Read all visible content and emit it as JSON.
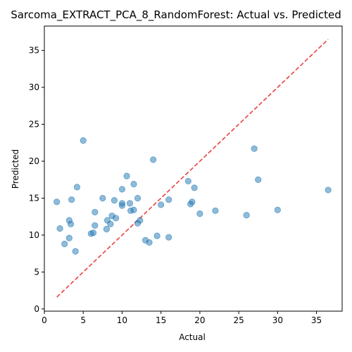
{
  "chart_data": {
    "type": "scatter",
    "title": "Sarcoma_EXTRACT_PCA_8_RandomForest: Actual vs. Predicted",
    "xlabel": "Actual",
    "ylabel": "Predicted",
    "xlim": [
      0,
      38.3
    ],
    "ylim": [
      -0.3,
      38.3
    ],
    "xticks": [
      0,
      5,
      10,
      15,
      20,
      25,
      30,
      35
    ],
    "yticks": [
      0,
      5,
      10,
      15,
      20,
      25,
      30,
      35
    ],
    "grid": false,
    "point_color": "#1f77b4",
    "point_alpha": 0.5,
    "reference_line": {
      "style": "dashed",
      "color": "#e8413e",
      "x": [
        1.6,
        36.5
      ],
      "y": [
        1.6,
        36.5
      ]
    },
    "points": [
      {
        "x": 1.6,
        "y": 14.5
      },
      {
        "x": 2.0,
        "y": 10.9
      },
      {
        "x": 2.6,
        "y": 8.8
      },
      {
        "x": 3.2,
        "y": 9.6
      },
      {
        "x": 3.2,
        "y": 12.0
      },
      {
        "x": 3.4,
        "y": 11.5
      },
      {
        "x": 3.5,
        "y": 14.8
      },
      {
        "x": 4.0,
        "y": 7.8
      },
      {
        "x": 4.2,
        "y": 16.5
      },
      {
        "x": 5.0,
        "y": 22.8
      },
      {
        "x": 6.0,
        "y": 10.2
      },
      {
        "x": 6.3,
        "y": 10.3
      },
      {
        "x": 6.5,
        "y": 11.3
      },
      {
        "x": 6.5,
        "y": 13.1
      },
      {
        "x": 7.5,
        "y": 15.0
      },
      {
        "x": 8.0,
        "y": 10.8
      },
      {
        "x": 8.1,
        "y": 12.0
      },
      {
        "x": 8.5,
        "y": 11.5
      },
      {
        "x": 8.7,
        "y": 12.6
      },
      {
        "x": 9.0,
        "y": 14.7
      },
      {
        "x": 9.2,
        "y": 12.3
      },
      {
        "x": 10.0,
        "y": 14.3
      },
      {
        "x": 10.0,
        "y": 14.0
      },
      {
        "x": 10.0,
        "y": 16.2
      },
      {
        "x": 10.6,
        "y": 18.0
      },
      {
        "x": 11.0,
        "y": 14.3
      },
      {
        "x": 11.1,
        "y": 13.3
      },
      {
        "x": 11.5,
        "y": 13.4
      },
      {
        "x": 11.5,
        "y": 16.9
      },
      {
        "x": 12.0,
        "y": 15.0
      },
      {
        "x": 12.0,
        "y": 11.6
      },
      {
        "x": 12.3,
        "y": 12.0
      },
      {
        "x": 13.0,
        "y": 9.3
      },
      {
        "x": 13.5,
        "y": 9.0
      },
      {
        "x": 14.0,
        "y": 20.2
      },
      {
        "x": 14.5,
        "y": 9.9
      },
      {
        "x": 15.0,
        "y": 14.1
      },
      {
        "x": 16.0,
        "y": 9.7
      },
      {
        "x": 16.0,
        "y": 14.8
      },
      {
        "x": 18.5,
        "y": 17.3
      },
      {
        "x": 18.8,
        "y": 14.2
      },
      {
        "x": 19.0,
        "y": 14.5
      },
      {
        "x": 19.3,
        "y": 16.4
      },
      {
        "x": 20.0,
        "y": 12.9
      },
      {
        "x": 22.0,
        "y": 13.3
      },
      {
        "x": 26.0,
        "y": 12.7
      },
      {
        "x": 27.0,
        "y": 21.7
      },
      {
        "x": 27.5,
        "y": 17.5
      },
      {
        "x": 30.0,
        "y": 13.4
      },
      {
        "x": 36.5,
        "y": 16.1
      }
    ]
  }
}
